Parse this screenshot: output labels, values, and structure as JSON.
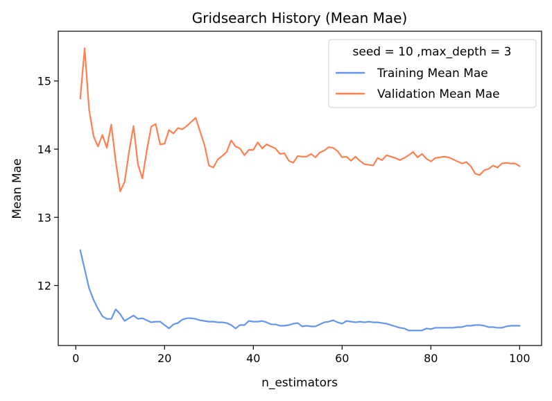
{
  "chart_data": {
    "type": "line",
    "title": "Gridsearch History (Mean Mae)",
    "xlabel": "n_estimators",
    "ylabel": "Mean Mae",
    "xlim": [
      -3.95,
      104.95
    ],
    "ylim": [
      11.12,
      15.73
    ],
    "xticks": [
      0,
      20,
      40,
      60,
      80,
      100
    ],
    "yticks": [
      12,
      13,
      14,
      15
    ],
    "grid": false,
    "legend": {
      "title": "seed = 10 ,max_depth = 3",
      "placement": "top-right"
    },
    "x": [
      1,
      2,
      3,
      4,
      5,
      6,
      7,
      8,
      9,
      10,
      11,
      12,
      13,
      14,
      15,
      16,
      17,
      18,
      19,
      20,
      21,
      22,
      23,
      24,
      25,
      26,
      27,
      28,
      29,
      30,
      31,
      32,
      33,
      34,
      35,
      36,
      37,
      38,
      39,
      40,
      41,
      42,
      43,
      44,
      45,
      46,
      47,
      48,
      49,
      50,
      51,
      52,
      53,
      54,
      55,
      56,
      57,
      58,
      59,
      60,
      61,
      62,
      63,
      64,
      65,
      66,
      67,
      68,
      69,
      70,
      71,
      72,
      73,
      74,
      75,
      76,
      77,
      78,
      79,
      80,
      81,
      82,
      83,
      84,
      85,
      86,
      87,
      88,
      89,
      90,
      91,
      92,
      93,
      94,
      95,
      96,
      97,
      98,
      99,
      100
    ],
    "series": [
      {
        "name": "Training Mean Mae",
        "color": "#6495ED",
        "values": [
          12.52,
          12.24,
          11.96,
          11.79,
          11.66,
          11.55,
          11.51,
          11.51,
          11.65,
          11.58,
          11.48,
          11.52,
          11.56,
          11.51,
          11.52,
          11.49,
          11.46,
          11.47,
          11.47,
          11.42,
          11.37,
          11.43,
          11.45,
          11.5,
          11.52,
          11.52,
          11.51,
          11.49,
          11.48,
          11.47,
          11.47,
          11.46,
          11.46,
          11.45,
          11.42,
          11.37,
          11.42,
          11.42,
          11.48,
          11.47,
          11.47,
          11.48,
          11.46,
          11.43,
          11.43,
          11.41,
          11.41,
          11.42,
          11.44,
          11.45,
          11.4,
          11.41,
          11.4,
          11.4,
          11.43,
          11.46,
          11.47,
          11.49,
          11.46,
          11.44,
          11.48,
          11.47,
          11.46,
          11.47,
          11.46,
          11.47,
          11.46,
          11.46,
          11.45,
          11.44,
          11.42,
          11.4,
          11.38,
          11.37,
          11.34,
          11.34,
          11.34,
          11.34,
          11.37,
          11.36,
          11.38,
          11.38,
          11.38,
          11.38,
          11.38,
          11.39,
          11.39,
          11.41,
          11.41,
          11.42,
          11.42,
          11.41,
          11.39,
          11.39,
          11.38,
          11.38,
          11.4,
          11.41,
          11.41,
          11.41
        ]
      },
      {
        "name": "Validation Mean Mae",
        "color": "#FF7F50",
        "values": [
          14.74,
          15.48,
          14.58,
          14.19,
          14.04,
          14.21,
          14.02,
          14.36,
          13.82,
          13.38,
          13.52,
          13.96,
          14.34,
          13.78,
          13.57,
          13.98,
          14.33,
          14.37,
          14.07,
          14.08,
          14.28,
          14.23,
          14.31,
          14.29,
          14.34,
          14.4,
          14.46,
          14.26,
          14.06,
          13.76,
          13.73,
          13.85,
          13.9,
          13.96,
          14.13,
          14.04,
          14.01,
          13.91,
          13.99,
          13.99,
          14.1,
          14.01,
          14.07,
          14.04,
          14.01,
          13.93,
          13.94,
          13.83,
          13.8,
          13.9,
          13.89,
          13.89,
          13.93,
          13.88,
          13.95,
          13.98,
          14.03,
          14.02,
          13.97,
          13.88,
          13.89,
          13.83,
          13.89,
          13.83,
          13.78,
          13.77,
          13.76,
          13.87,
          13.84,
          13.91,
          13.89,
          13.87,
          13.84,
          13.87,
          13.91,
          13.96,
          13.88,
          13.93,
          13.86,
          13.82,
          13.87,
          13.88,
          13.89,
          13.88,
          13.85,
          13.82,
          13.79,
          13.81,
          13.75,
          13.64,
          13.62,
          13.69,
          13.71,
          13.76,
          13.73,
          13.79,
          13.8,
          13.79,
          13.79,
          13.75
        ]
      }
    ]
  }
}
